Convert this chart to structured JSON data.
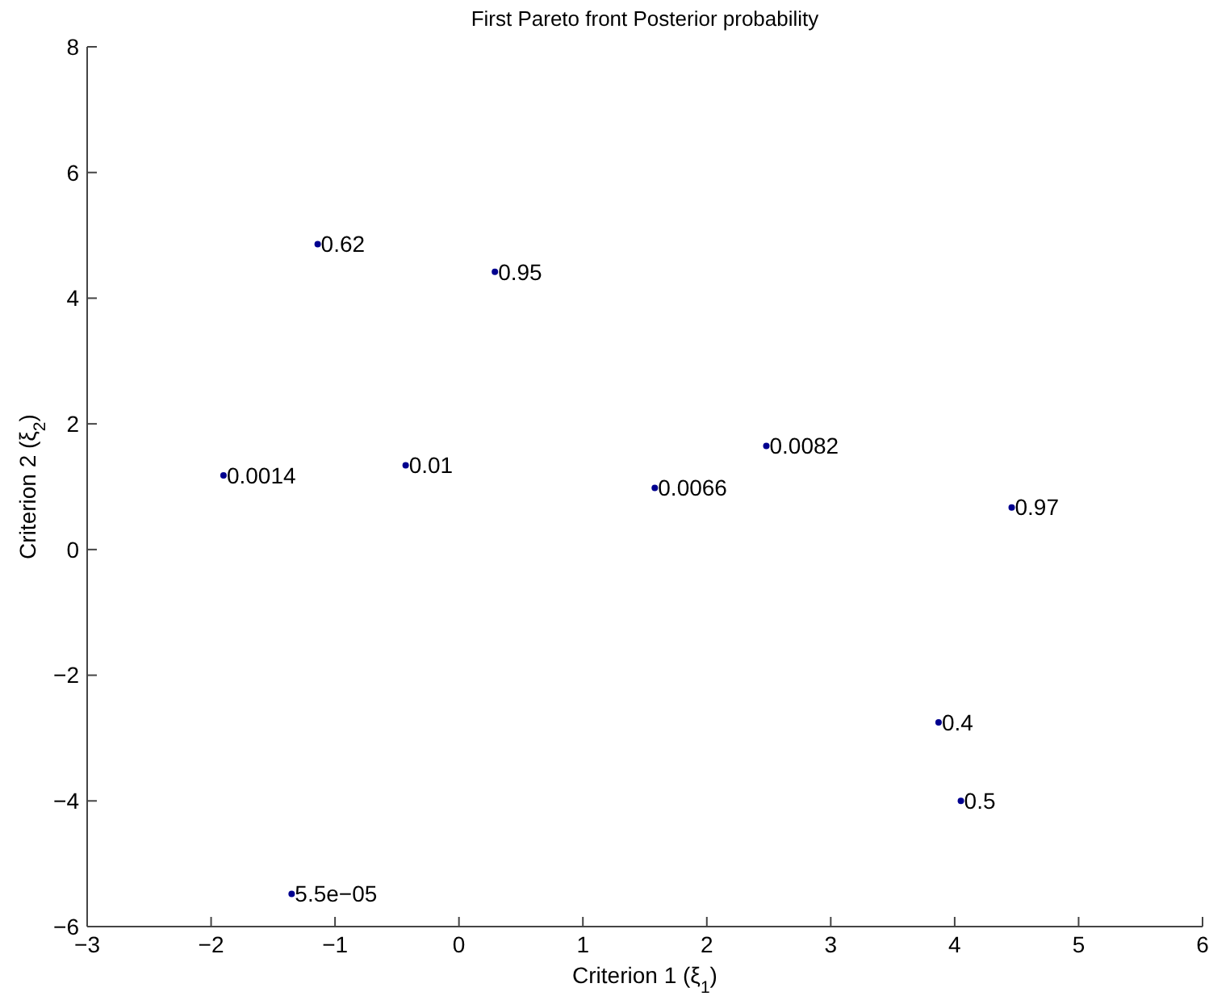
{
  "chart_data": {
    "type": "scatter",
    "title": "First Pareto front Posterior probability",
    "xlabel": "Criterion 1 (ξ$_{1}$)",
    "ylabel": "Criterion 2 (ξ$_{2}$)",
    "xlim": [
      -3,
      6
    ],
    "ylim": [
      -6,
      8
    ],
    "xticks": [
      -3,
      -2,
      -1,
      0,
      1,
      2,
      3,
      4,
      5,
      6
    ],
    "yticks": [
      -6,
      -4,
      -2,
      0,
      2,
      4,
      6,
      8
    ],
    "grid": false,
    "marker": "circle",
    "series": [
      {
        "color": "#00008f",
        "x": [
          -1.14,
          0.29,
          -1.9,
          -0.43,
          1.58,
          2.48,
          4.46,
          3.87,
          4.05,
          -1.35
        ],
        "values": [
          4.86,
          4.42,
          1.18,
          1.34,
          0.98,
          1.65,
          0.67,
          -2.75,
          -4.0,
          -5.48
        ]
      }
    ],
    "annotations": [
      {
        "text": "0.62",
        "x": -1.14,
        "y": 4.86
      },
      {
        "text": "0.95",
        "x": 0.29,
        "y": 4.42
      },
      {
        "text": "0.0014",
        "x": -1.9,
        "y": 1.18
      },
      {
        "text": "0.01",
        "x": -0.43,
        "y": 1.34
      },
      {
        "text": "0.0066",
        "x": 1.58,
        "y": 0.98
      },
      {
        "text": "0.0082",
        "x": 2.48,
        "y": 1.65
      },
      {
        "text": "0.97",
        "x": 4.46,
        "y": 0.67
      },
      {
        "text": "0.4",
        "x": 3.87,
        "y": -2.75
      },
      {
        "text": "0.5",
        "x": 4.05,
        "y": -4.0
      },
      {
        "text": "5.5e−05",
        "x": -1.35,
        "y": -5.48
      }
    ]
  }
}
